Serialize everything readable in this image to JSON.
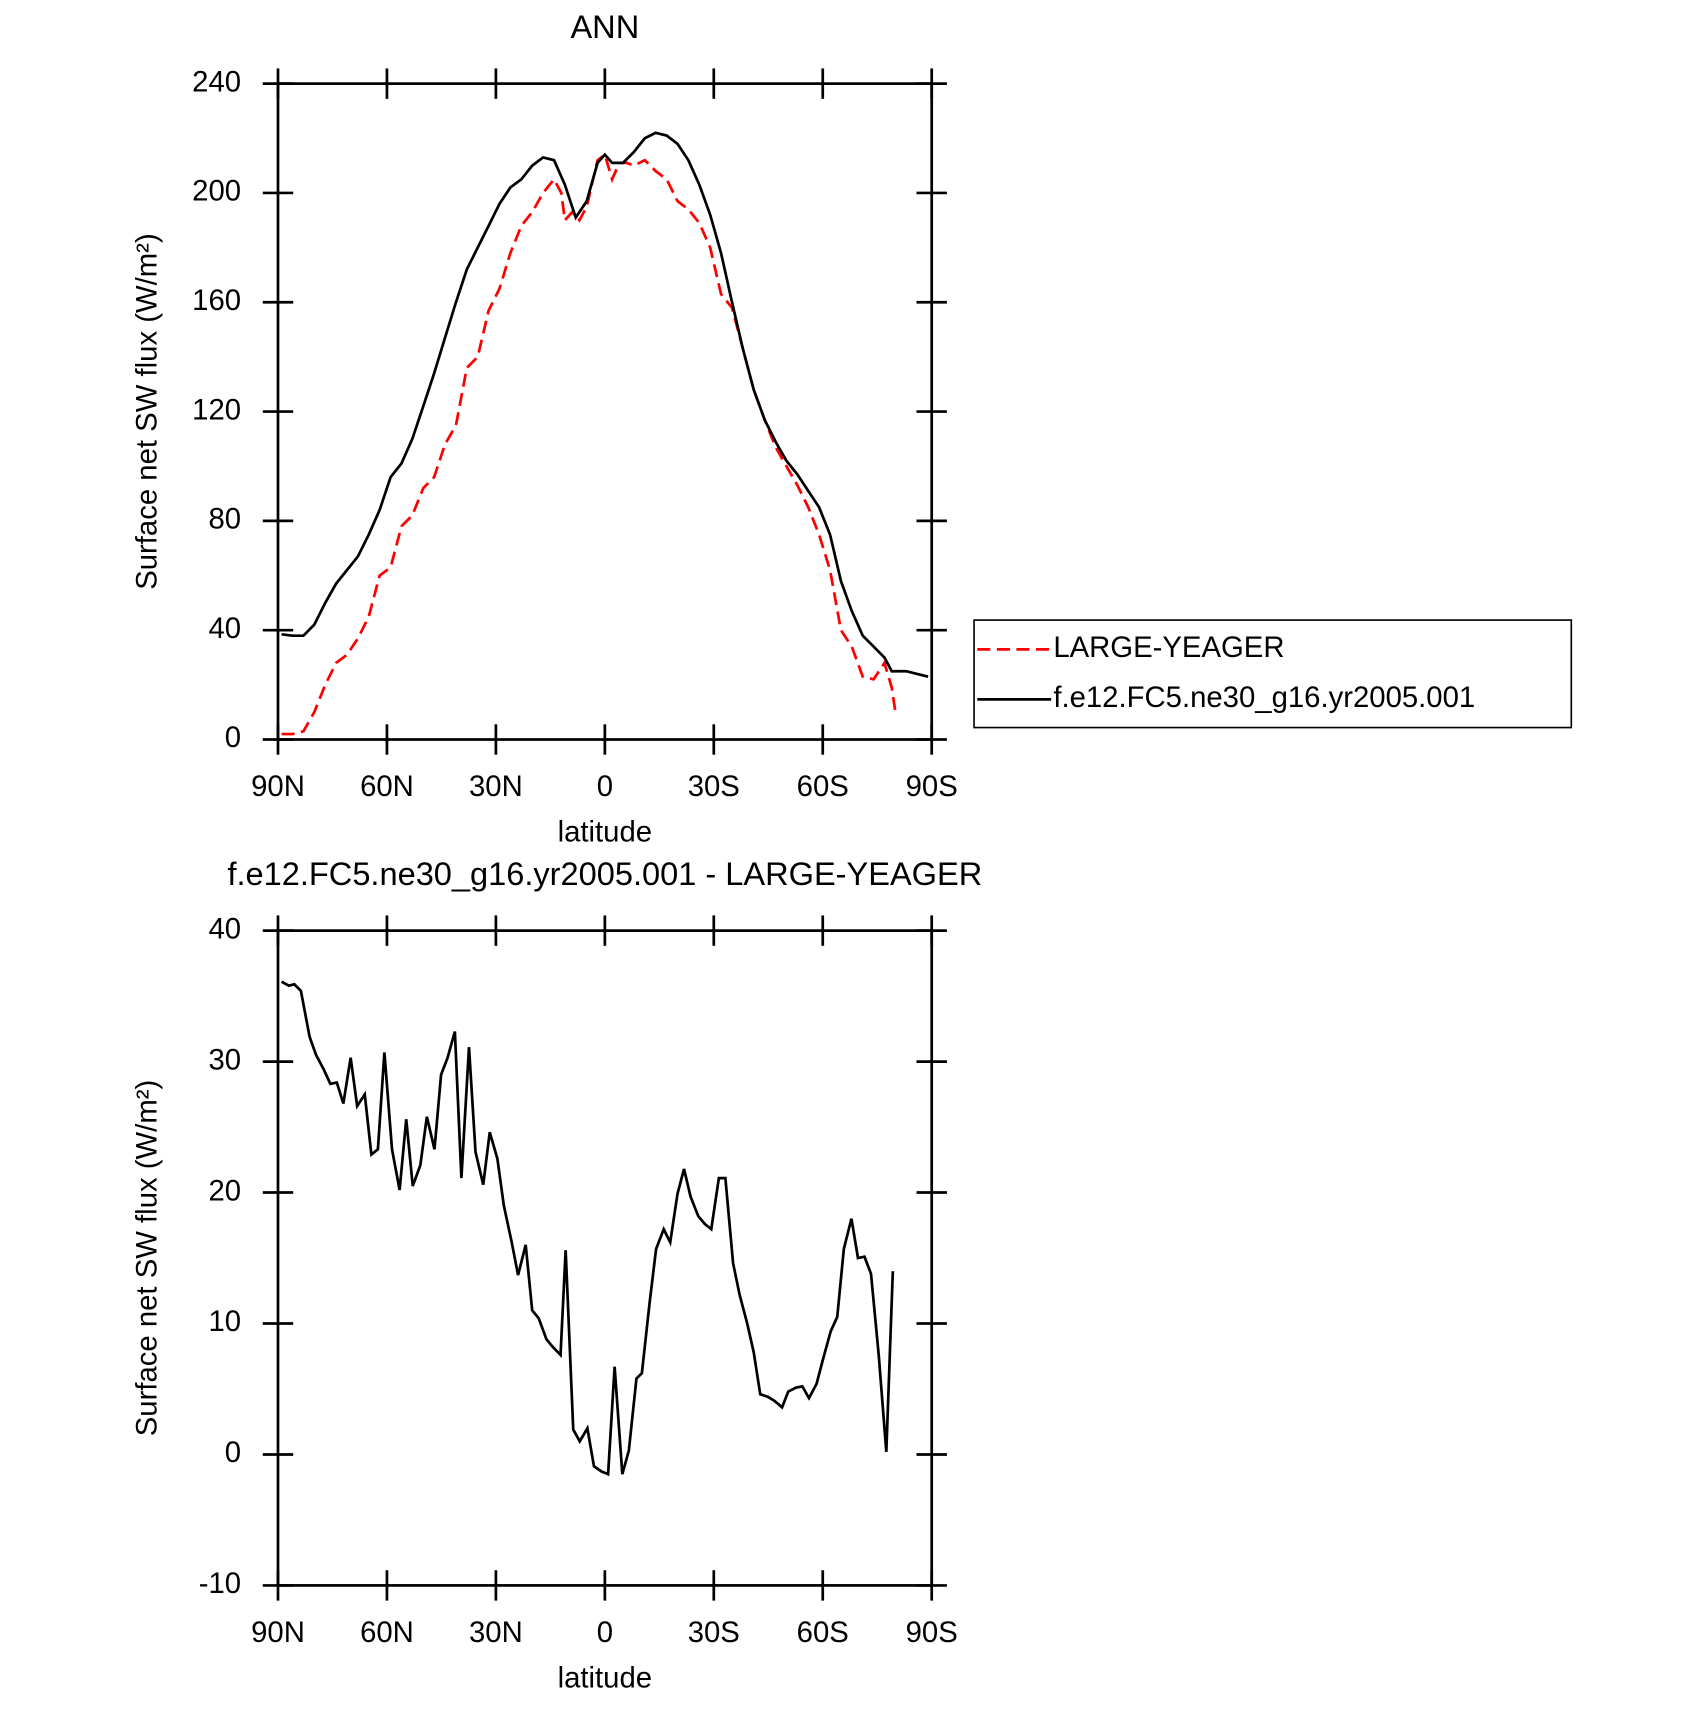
{
  "chart_data": [
    {
      "type": "line",
      "title": "ANN",
      "xlabel": "latitude",
      "ylabel": "Surface net SW flux (W/m²)",
      "xlim": [
        90,
        -90
      ],
      "xticks": [
        {
          "value": 90,
          "label": "90N"
        },
        {
          "value": 60,
          "label": "60N"
        },
        {
          "value": 30,
          "label": "30N"
        },
        0,
        {
          "value": -30,
          "label": "30S"
        },
        {
          "value": -60,
          "label": "60S"
        },
        {
          "value": -90,
          "label": "90S"
        }
      ],
      "ylim": [
        0,
        240
      ],
      "yticks": [
        0,
        40,
        80,
        120,
        160,
        200,
        240
      ],
      "series": [
        {
          "name": "LARGE-YEAGER",
          "color": "#ff0000",
          "dash": true,
          "x": [
            89,
            86,
            83,
            80,
            77,
            74,
            71,
            68,
            65,
            62,
            59,
            56,
            53,
            50,
            47,
            44,
            41,
            38,
            35,
            32,
            29,
            26,
            23,
            20,
            17,
            14,
            12,
            11,
            9,
            7,
            5,
            2,
            0,
            -2,
            -4,
            -6,
            -8,
            -11,
            -14,
            -17,
            -20,
            -23,
            -26,
            -29,
            -32,
            -35,
            -38,
            -41,
            -44,
            -47,
            -50,
            -53,
            -56,
            -59,
            -62,
            -65,
            -68,
            -71,
            -74,
            -77,
            -79,
            -80
          ],
          "values": [
            2,
            2,
            3,
            10,
            20,
            28,
            31,
            37,
            45,
            60,
            63,
            78,
            82,
            92,
            96,
            108,
            115,
            136,
            140,
            157,
            165,
            178,
            188,
            193,
            200,
            205,
            200,
            190,
            193,
            190,
            195,
            212,
            214,
            205,
            211,
            211,
            210,
            212,
            208,
            205,
            197,
            194,
            189,
            180,
            163,
            158,
            143,
            128,
            117,
            107,
            100,
            93,
            85,
            75,
            62,
            40,
            34,
            23,
            22,
            28,
            19,
            10
          ]
        },
        {
          "name": "f.e12.FC5.ne30_g16.yr2005.001",
          "color": "#000000",
          "dash": false,
          "x": [
            89,
            86,
            83,
            80,
            77,
            74,
            71,
            68,
            65,
            62,
            59,
            56,
            53,
            50,
            47,
            44,
            41,
            38,
            35,
            32,
            29,
            26,
            23,
            20,
            17,
            14,
            11,
            8,
            5,
            2,
            0,
            -2,
            -5,
            -8,
            -11,
            -14,
            -17,
            -20,
            -23,
            -26,
            -29,
            -32,
            -35,
            -38,
            -41,
            -44,
            -47,
            -50,
            -53,
            -56,
            -59,
            -62,
            -65,
            -68,
            -71,
            -74,
            -77,
            -79,
            -83,
            -86,
            -89
          ],
          "values": [
            38.5,
            38,
            38,
            42,
            50,
            57,
            62,
            67,
            75,
            84,
            96,
            101,
            110,
            122,
            134,
            147,
            160,
            172,
            180,
            188,
            196,
            202,
            205,
            210,
            213,
            212,
            203,
            191,
            197,
            211,
            214,
            211,
            211,
            215,
            220,
            222,
            221,
            218,
            212,
            203,
            192,
            178,
            160,
            143,
            128,
            117,
            109,
            102,
            97,
            91,
            85,
            75,
            58,
            47,
            38,
            34,
            30,
            25,
            25,
            24,
            23
          ]
        }
      ]
    },
    {
      "type": "line",
      "title": "f.e12.FC5.ne30_g16.yr2005.001 - LARGE-YEAGER",
      "xlabel": "latitude",
      "ylabel": "Surface net SW flux (W/m²)",
      "xlim": [
        90,
        -90
      ],
      "xticks": [
        {
          "value": 90,
          "label": "90N"
        },
        {
          "value": 60,
          "label": "60N"
        },
        {
          "value": 30,
          "label": "30N"
        },
        0,
        {
          "value": -30,
          "label": "30S"
        },
        {
          "value": -60,
          "label": "60S"
        },
        {
          "value": -90,
          "label": "90S"
        }
      ],
      "ylim": [
        -10,
        40
      ],
      "yticks": [
        -10,
        0,
        10,
        20,
        30,
        40
      ],
      "series": [
        {
          "color": "#000000",
          "dash": false,
          "x": [
            89,
            87,
            85.5,
            83.7,
            81.3,
            79.5,
            77.4,
            75.6,
            73.8,
            72,
            70,
            68.2,
            66.1,
            64.3,
            62.5,
            60.7,
            58.6,
            56.5,
            54.7,
            52.9,
            50.8,
            49,
            46.9,
            45.1,
            43.3,
            41.3,
            39.5,
            37.4,
            35.6,
            33.5,
            31.7,
            29.6,
            27.8,
            25.7,
            23.9,
            21.8,
            20,
            18.2,
            16.1,
            14.3,
            12.2,
            10.8,
            8.7,
            6.9,
            4.8,
            3,
            0.9,
            -0.9,
            -2.7,
            -4.8,
            -6.6,
            -8.7,
            -10.2,
            -12.3,
            -14.1,
            -16.2,
            -18,
            -20,
            -21.8,
            -23.6,
            -25.7,
            -27.5,
            -29.3,
            -31.4,
            -33.2,
            -35.3,
            -37.1,
            -39.2,
            -41,
            -42.8,
            -44.9,
            -46.7,
            -48.8,
            -50.5,
            -52.6,
            -54.4,
            -56.2,
            -58.3,
            -60.1,
            -62.2,
            -64,
            -65.8,
            -67.9,
            -69.7,
            -71.5,
            -73.3,
            -75.4,
            -77.5,
            -79.3
          ],
          "values": [
            36.1,
            35.8,
            35.9,
            35.4,
            31.9,
            30.5,
            29.4,
            28.3,
            28.4,
            26.8,
            30.3,
            26.6,
            27.5,
            22.9,
            23.3,
            30.7,
            23.3,
            20.2,
            25.6,
            20.5,
            22.1,
            25.8,
            23.3,
            29,
            30.3,
            32.3,
            21.1,
            31.1,
            23.1,
            20.6,
            24.6,
            22.6,
            19,
            16.3,
            13.7,
            16,
            11,
            10.4,
            8.8,
            8.2,
            7.6,
            15.6,
            1.9,
            1,
            2,
            -0.9,
            -1.3,
            -1.5,
            6.7,
            -1.5,
            0.3,
            5.8,
            6.2,
            11.5,
            15.7,
            17.2,
            16.2,
            19.9,
            21.8,
            19.7,
            18.2,
            17.6,
            17.2,
            21.1,
            21.1,
            14.6,
            12.2,
            10,
            7.8,
            4.6,
            4.4,
            4.1,
            3.6,
            4.8,
            5.1,
            5.2,
            4.3,
            5.4,
            7.3,
            9.4,
            10.5,
            15.7,
            18,
            15,
            15.1,
            13.8,
            7.6,
            0.2,
            14
          ]
        }
      ]
    }
  ]
}
